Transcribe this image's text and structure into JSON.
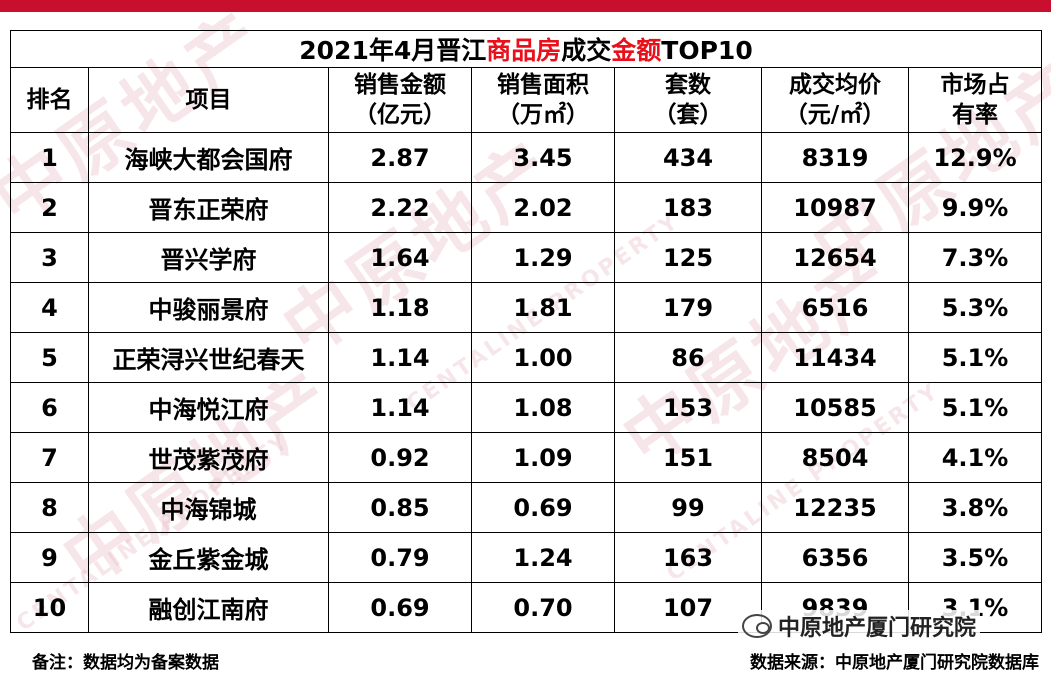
{
  "title": {
    "parts": [
      "2021年4月晋江",
      "商品房",
      "成交",
      "金额",
      "TOP10"
    ]
  },
  "headers": [
    {
      "l1": "排名",
      "l2": ""
    },
    {
      "l1": "项目",
      "l2": ""
    },
    {
      "l1": "销售金额",
      "l2": "（亿元）"
    },
    {
      "l1": "销售面积",
      "l2": "（万㎡）"
    },
    {
      "l1": "套数",
      "l2": "（套）"
    },
    {
      "l1": "成交均价",
      "l2": "（元/㎡）"
    },
    {
      "l1": "市场占",
      "l2": "有率"
    }
  ],
  "rows": [
    [
      "1",
      "海峡大都会国府",
      "2.87",
      "3.45",
      "434",
      "8319",
      "12.9%"
    ],
    [
      "2",
      "晋东正荣府",
      "2.22",
      "2.02",
      "183",
      "10987",
      "9.9%"
    ],
    [
      "3",
      "晋兴学府",
      "1.64",
      "1.29",
      "125",
      "12654",
      "7.3%"
    ],
    [
      "4",
      "中骏丽景府",
      "1.18",
      "1.81",
      "179",
      "6516",
      "5.3%"
    ],
    [
      "5",
      "正荣浔兴世纪春天",
      "1.14",
      "1.00",
      "86",
      "11434",
      "5.1%"
    ],
    [
      "6",
      "中海悦江府",
      "1.14",
      "1.08",
      "153",
      "10585",
      "5.1%"
    ],
    [
      "7",
      "世茂紫茂府",
      "0.92",
      "1.09",
      "151",
      "8504",
      "4.1%"
    ],
    [
      "8",
      "中海锦城",
      "0.85",
      "0.69",
      "99",
      "12235",
      "3.8%"
    ],
    [
      "9",
      "金丘紫金城",
      "0.79",
      "1.24",
      "163",
      "6356",
      "3.5%"
    ],
    [
      "10",
      "融创江南府",
      "0.69",
      "0.70",
      "107",
      "9839",
      "3.1%"
    ]
  ],
  "footer": {
    "note": "备注：数据均为备案数据",
    "source": "数据来源：中原地产厦门研究院数据库"
  },
  "watermark": {
    "brand": "中原地产厦门研究院",
    "text_cn": "中原地产",
    "text_en": "CENTALINE PROPERTY"
  },
  "colors": {
    "accent": "#c8102e",
    "title_highlight": "#e8101a"
  }
}
